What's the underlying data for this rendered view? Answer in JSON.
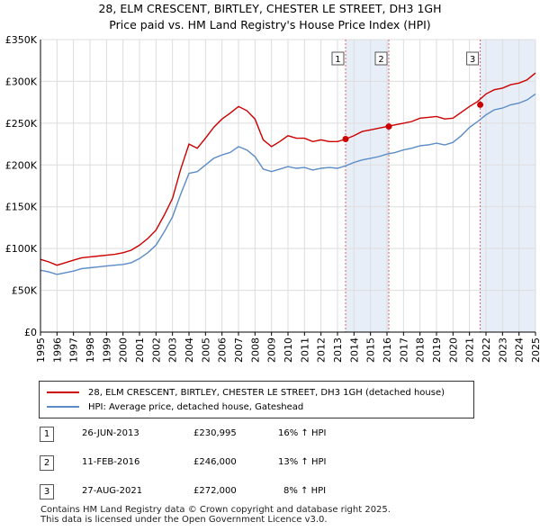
{
  "title": "28, ELM CRESCENT, BIRTLEY, CHESTER LE STREET, DH3 1GH",
  "subtitle": "Price paid vs. HM Land Registry's House Price Index (HPI)",
  "chart_data": {
    "type": "line",
    "title": "28, ELM CRESCENT, BIRTLEY, CHESTER LE STREET, DH3 1GH",
    "subtitle": "Price paid vs. HM Land Registry's House Price Index (HPI)",
    "xlabel": "",
    "ylabel": "",
    "xlim": [
      1995,
      2025
    ],
    "ylim": [
      0,
      350000
    ],
    "x_ticks": [
      1995,
      1996,
      1997,
      1998,
      1999,
      2000,
      2001,
      2002,
      2003,
      2004,
      2005,
      2006,
      2007,
      2008,
      2009,
      2010,
      2011,
      2012,
      2013,
      2014,
      2015,
      2016,
      2017,
      2018,
      2019,
      2020,
      2021,
      2022,
      2023,
      2024,
      2025
    ],
    "y_ticks": [
      0,
      50000,
      100000,
      150000,
      200000,
      250000,
      300000,
      350000
    ],
    "y_tick_labels": [
      "£0",
      "£50K",
      "£100K",
      "£150K",
      "£200K",
      "£250K",
      "£300K",
      "£350K"
    ],
    "grid": true,
    "series": [
      {
        "name": "28, ELM CRESCENT, BIRTLEY, CHESTER LE STREET, DH3 1GH (detached house)",
        "color": "#cc0000",
        "x": [
          1995.0,
          1995.5,
          1996.0,
          1996.5,
          1997.0,
          1997.5,
          1998.0,
          1998.5,
          1999.0,
          1999.5,
          2000.0,
          2000.5,
          2001.0,
          2001.5,
          2002.0,
          2002.5,
          2003.0,
          2003.5,
          2004.0,
          2004.5,
          2005.0,
          2005.5,
          2006.0,
          2006.5,
          2007.0,
          2007.5,
          2008.0,
          2008.5,
          2009.0,
          2009.5,
          2010.0,
          2010.5,
          2011.0,
          2011.5,
          2012.0,
          2012.5,
          2013.0,
          2013.5,
          2014.0,
          2014.5,
          2015.0,
          2015.5,
          2016.0,
          2016.5,
          2017.0,
          2017.5,
          2018.0,
          2018.5,
          2019.0,
          2019.5,
          2020.0,
          2020.5,
          2021.0,
          2021.5,
          2022.0,
          2022.5,
          2023.0,
          2023.5,
          2024.0,
          2024.5,
          2025.0
        ],
        "values": [
          87000,
          84000,
          80000,
          83000,
          86000,
          89000,
          90000,
          91000,
          92000,
          93000,
          95000,
          98000,
          104000,
          112000,
          122000,
          140000,
          160000,
          195000,
          225000,
          220000,
          232000,
          245000,
          255000,
          262000,
          270000,
          265000,
          255000,
          230000,
          222000,
          228000,
          235000,
          232000,
          232000,
          228000,
          230000,
          228000,
          228000,
          231000,
          235000,
          240000,
          242000,
          244000,
          246000,
          248000,
          250000,
          252000,
          256000,
          257000,
          258000,
          255000,
          256000,
          263000,
          270000,
          276000,
          285000,
          290000,
          292000,
          296000,
          298000,
          302000,
          310000
        ]
      },
      {
        "name": "HPI: Average price, detached house, Gateshead",
        "color": "#5b8cc6",
        "x": [
          1995.0,
          1995.5,
          1996.0,
          1996.5,
          1997.0,
          1997.5,
          1998.0,
          1998.5,
          1999.0,
          1999.5,
          2000.0,
          2000.5,
          2001.0,
          2001.5,
          2002.0,
          2002.5,
          2003.0,
          2003.5,
          2004.0,
          2004.5,
          2005.0,
          2005.5,
          2006.0,
          2006.5,
          2007.0,
          2007.5,
          2008.0,
          2008.5,
          2009.0,
          2009.5,
          2010.0,
          2010.5,
          2011.0,
          2011.5,
          2012.0,
          2012.5,
          2013.0,
          2013.5,
          2014.0,
          2014.5,
          2015.0,
          2015.5,
          2016.0,
          2016.5,
          2017.0,
          2017.5,
          2018.0,
          2018.5,
          2019.0,
          2019.5,
          2020.0,
          2020.5,
          2021.0,
          2021.5,
          2022.0,
          2022.5,
          2023.0,
          2023.5,
          2024.0,
          2024.5,
          2025.0
        ],
        "values": [
          74000,
          72000,
          69000,
          71000,
          73000,
          76000,
          77000,
          78000,
          79000,
          80000,
          81000,
          83000,
          88000,
          95000,
          104000,
          120000,
          138000,
          165000,
          190000,
          192000,
          200000,
          208000,
          212000,
          215000,
          222000,
          218000,
          210000,
          195000,
          192000,
          195000,
          198000,
          196000,
          197000,
          194000,
          196000,
          197000,
          196000,
          199000,
          203000,
          206000,
          208000,
          210000,
          213000,
          215000,
          218000,
          220000,
          223000,
          224000,
          226000,
          224000,
          227000,
          235000,
          245000,
          252000,
          260000,
          266000,
          268000,
          272000,
          274000,
          278000,
          285000
        ]
      }
    ],
    "annotations": [
      {
        "label": "1",
        "x": 2013.49,
        "date": "26-JUN-2013",
        "price": 230995,
        "hpi": "16% ↑ HPI"
      },
      {
        "label": "2",
        "x": 2016.11,
        "date": "11-FEB-2016",
        "price": 246000,
        "hpi": "13% ↑ HPI"
      },
      {
        "label": "3",
        "x": 2021.65,
        "date": "27-AUG-2021",
        "price": 272000,
        "hpi": "8% ↑ HPI"
      }
    ],
    "shaded_spans": [
      [
        2013.49,
        2016.11
      ],
      [
        2021.65,
        2025.0
      ]
    ]
  },
  "legend": {
    "property_label": "28, ELM CRESCENT, BIRTLEY, CHESTER LE STREET, DH3 1GH (detached house)",
    "hpi_label": "HPI: Average price, detached house, Gateshead"
  },
  "transactions": [
    {
      "num": "1",
      "date": "26-JUN-2013",
      "price": "£230,995",
      "hpi": "16% ↑ HPI"
    },
    {
      "num": "2",
      "date": "11-FEB-2016",
      "price": "£246,000",
      "hpi": "13% ↑ HPI"
    },
    {
      "num": "3",
      "date": "27-AUG-2021",
      "price": "£272,000",
      "hpi": "8% ↑ HPI"
    }
  ],
  "footer": {
    "line1": "Contains HM Land Registry data © Crown copyright and database right 2025.",
    "line2": "This data is licensed under the Open Government Licence v3.0."
  }
}
